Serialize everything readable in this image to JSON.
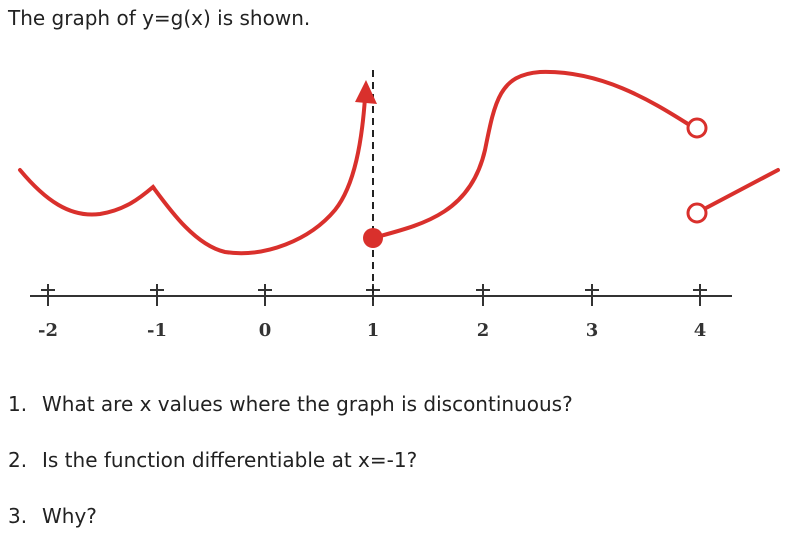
{
  "prompt": "The graph of y=g(x) is shown.",
  "axis_labels": [
    "-2",
    "-1",
    "0",
    "1",
    "2",
    "3",
    "4"
  ],
  "questions": [
    {
      "number": "1.",
      "text": "What are x values where the graph is discontinuous?"
    },
    {
      "number": "2.",
      "text": "Is the function differentiable at x=-1?"
    },
    {
      "number": "3.",
      "text": "Why?"
    }
  ]
}
